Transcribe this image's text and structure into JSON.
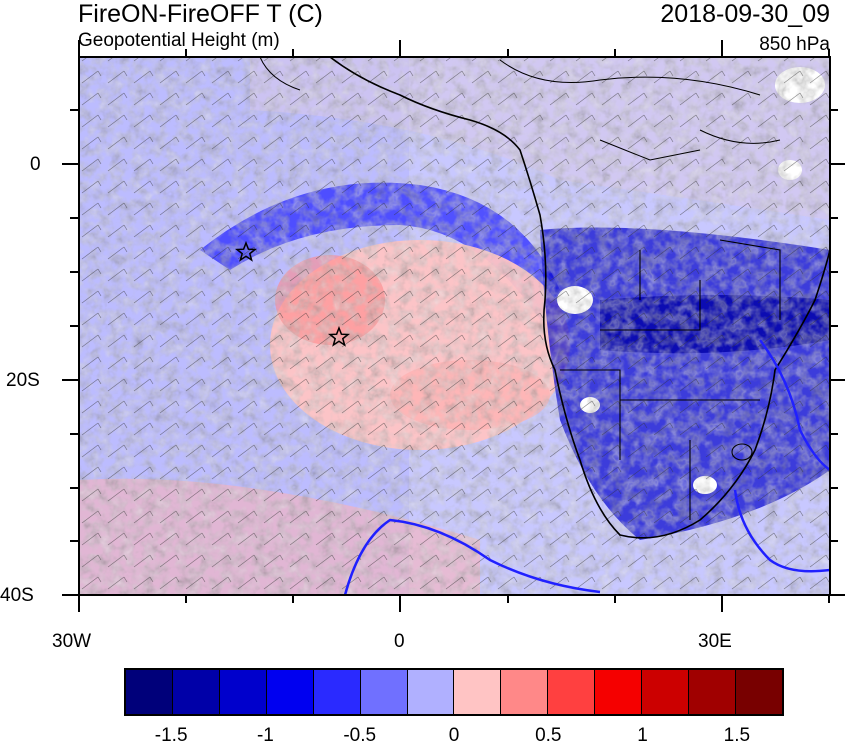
{
  "header": {
    "title": "FireON-FireOFF T (C)",
    "subtitle": "Geopotential Height (m)",
    "date": "2018-09-30_09",
    "level": "850 hPa"
  },
  "axes": {
    "y_ticks": [
      "0",
      "20S",
      "40S"
    ],
    "x_ticks": [
      "30W",
      "0",
      "30E"
    ]
  },
  "colorbar": {
    "colors": [
      "#00007a",
      "#0000a8",
      "#0000cc",
      "#0000f0",
      "#2a2aff",
      "#7070ff",
      "#b0b0ff",
      "#ffc4c4",
      "#ff8888",
      "#ff4040",
      "#f50000",
      "#cc0000",
      "#a00000",
      "#780000"
    ],
    "labels": [
      "-1.5",
      "-1",
      "-0.5",
      "0",
      "0.5",
      "1",
      "1.5"
    ]
  },
  "markers": [
    "star",
    "star"
  ]
}
